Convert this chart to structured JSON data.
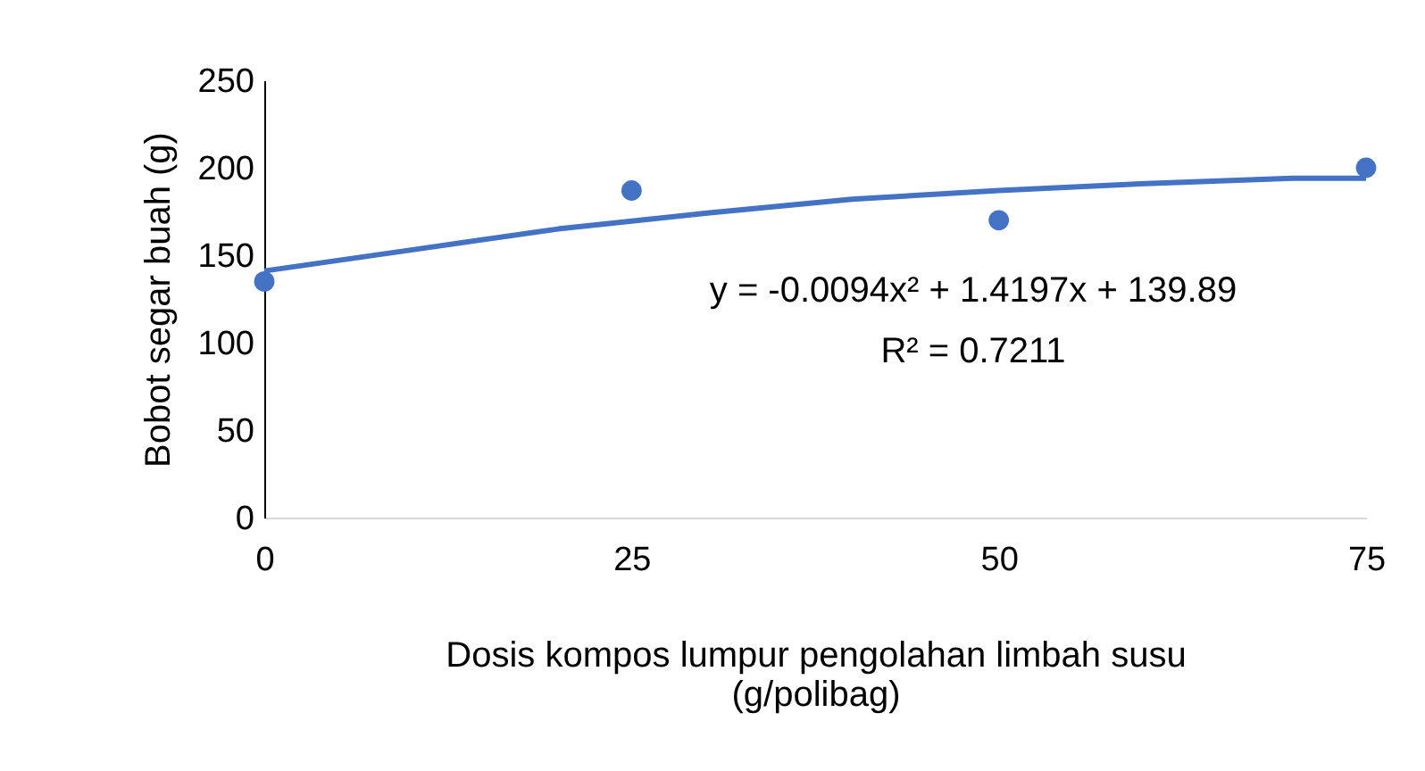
{
  "chart_data": {
    "type": "scatter",
    "xlabel": "Dosis kompos lumpur pengolahan limbah susu\n(g/polibag)",
    "ylabel": "Bobot segar buah (g)",
    "xlim": [
      0,
      75
    ],
    "xticks": [
      0,
      25,
      50,
      75
    ],
    "ylim": [
      0,
      250
    ],
    "yticks": [
      0,
      50,
      100,
      150,
      200,
      250
    ],
    "grid": false,
    "legend": false,
    "series": [
      {
        "color": "#4472c4",
        "marker": "circle",
        "x": [
          0,
          25,
          50,
          75
        ],
        "values": [
          135,
          187,
          170,
          200
        ]
      },
      {
        "type": "line",
        "color": "#4472c4",
        "line_style": "solid",
        "x": [
          0,
          10,
          20,
          30,
          40,
          50,
          60,
          70,
          75
        ],
        "values": [
          141,
          153,
          165,
          174,
          182,
          187,
          191,
          194,
          194
        ]
      }
    ],
    "annotations": [
      "y = -0.0094x² + 1.4197x + 139.89",
      "R² = 0.7211"
    ]
  }
}
